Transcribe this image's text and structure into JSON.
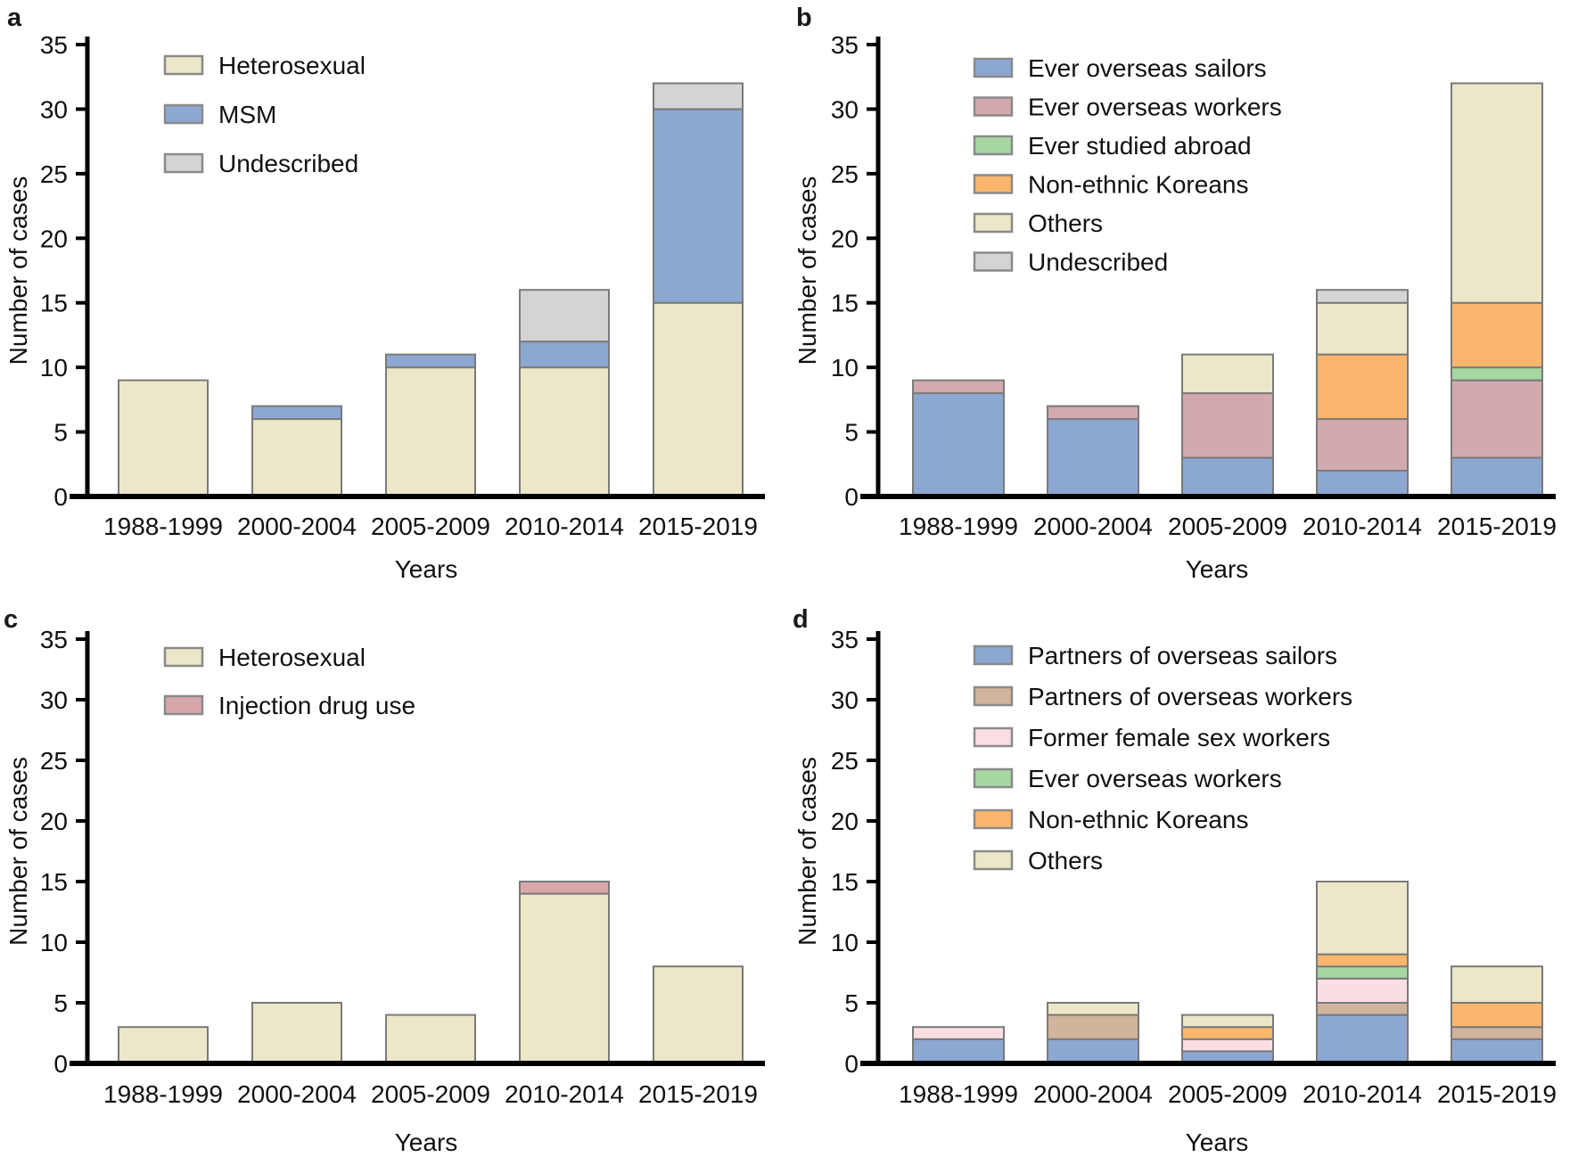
{
  "figure": {
    "background_color": "#ffffff",
    "axis_color": "#000000",
    "bar_stroke_color": "#7a7a7a",
    "legend_swatch_stroke_color": "#8a8a8a",
    "text_color": "#111111"
  },
  "panels": [
    {
      "letter": "a"
    },
    {
      "letter": "b"
    },
    {
      "letter": "c"
    },
    {
      "letter": "d"
    }
  ],
  "chart_data": [
    {
      "type": "bar",
      "stacked": true,
      "panel": "a",
      "title": "",
      "xlabel": "Years",
      "ylabel": "Number of cases",
      "ylim": [
        0,
        35
      ],
      "ytick_step": 5,
      "grid": false,
      "legend_position": "top-left-inside",
      "categories": [
        "1988-1999",
        "2000-2004",
        "2005-2009",
        "2010-2014",
        "2015-2019"
      ],
      "series": [
        {
          "name": "Heterosexual",
          "color": "#ece7c8",
          "values": [
            9,
            6,
            10,
            10,
            15
          ]
        },
        {
          "name": "MSM",
          "color": "#8da8d0",
          "values": [
            0,
            1,
            1,
            2,
            15
          ]
        },
        {
          "name": "Undescribed",
          "color": "#d4d4d4",
          "values": [
            0,
            0,
            0,
            4,
            2
          ]
        }
      ],
      "totals": [
        9,
        7,
        11,
        16,
        32
      ]
    },
    {
      "type": "bar",
      "stacked": true,
      "panel": "b",
      "title": "",
      "xlabel": "Years",
      "ylabel": "Number of cases",
      "ylim": [
        0,
        35
      ],
      "ytick_step": 5,
      "grid": false,
      "legend_position": "top-left-inside",
      "categories": [
        "1988-1999",
        "2000-2004",
        "2005-2009",
        "2010-2014",
        "2015-2019"
      ],
      "series": [
        {
          "name": "Ever overseas sailors",
          "color": "#8da8d0",
          "values": [
            8,
            6,
            3,
            2,
            3
          ]
        },
        {
          "name": "Ever overseas workers",
          "color": "#d2aaae",
          "values": [
            1,
            1,
            5,
            4,
            6
          ]
        },
        {
          "name": "Ever studied abroad",
          "color": "#a6d7a2",
          "values": [
            0,
            0,
            0,
            0,
            1
          ]
        },
        {
          "name": "Non-ethnic Koreans",
          "color": "#fbb66e",
          "values": [
            0,
            0,
            0,
            5,
            5
          ]
        },
        {
          "name": "Others",
          "color": "#ece7c8",
          "values": [
            0,
            0,
            3,
            4,
            17
          ]
        },
        {
          "name": "Undescribed",
          "color": "#d4d4d4",
          "values": [
            0,
            0,
            0,
            1,
            0
          ]
        }
      ],
      "totals": [
        9,
        7,
        11,
        16,
        32
      ]
    },
    {
      "type": "bar",
      "stacked": true,
      "panel": "c",
      "title": "",
      "xlabel": "Years",
      "ylabel": "Number of cases",
      "ylim": [
        0,
        35
      ],
      "ytick_step": 5,
      "grid": false,
      "legend_position": "top-left-inside",
      "categories": [
        "1988-1999",
        "2000-2004",
        "2005-2009",
        "2010-2014",
        "2015-2019"
      ],
      "series": [
        {
          "name": "Heterosexual",
          "color": "#ece7c8",
          "values": [
            3,
            5,
            4,
            14,
            8
          ]
        },
        {
          "name": "Injection drug use",
          "color": "#d8a7ab",
          "values": [
            0,
            0,
            0,
            1,
            0
          ]
        }
      ],
      "totals": [
        3,
        5,
        4,
        15,
        8
      ]
    },
    {
      "type": "bar",
      "stacked": true,
      "panel": "d",
      "title": "",
      "xlabel": "Years",
      "ylabel": "Number of cases",
      "ylim": [
        0,
        35
      ],
      "ytick_step": 5,
      "grid": false,
      "legend_position": "top-left-inside",
      "categories": [
        "1988-1999",
        "2000-2004",
        "2005-2009",
        "2010-2014",
        "2015-2019"
      ],
      "series": [
        {
          "name": "Partners of overseas sailors",
          "color": "#8da8d0",
          "values": [
            2,
            2,
            1,
            4,
            2
          ]
        },
        {
          "name": "Partners of overseas workers",
          "color": "#d0b49b",
          "values": [
            0,
            2,
            0,
            1,
            1
          ]
        },
        {
          "name": "Former female sex workers",
          "color": "#fbdee2",
          "values": [
            1,
            0,
            1,
            2,
            0
          ]
        },
        {
          "name": "Ever overseas workers",
          "color": "#a6d7a2",
          "values": [
            0,
            0,
            0,
            1,
            0
          ]
        },
        {
          "name": "Non-ethnic Koreans",
          "color": "#fbb66e",
          "values": [
            0,
            0,
            1,
            1,
            2
          ]
        },
        {
          "name": "Others",
          "color": "#ece7c8",
          "values": [
            0,
            1,
            1,
            6,
            3
          ]
        }
      ],
      "totals": [
        3,
        5,
        4,
        15,
        8
      ]
    }
  ]
}
